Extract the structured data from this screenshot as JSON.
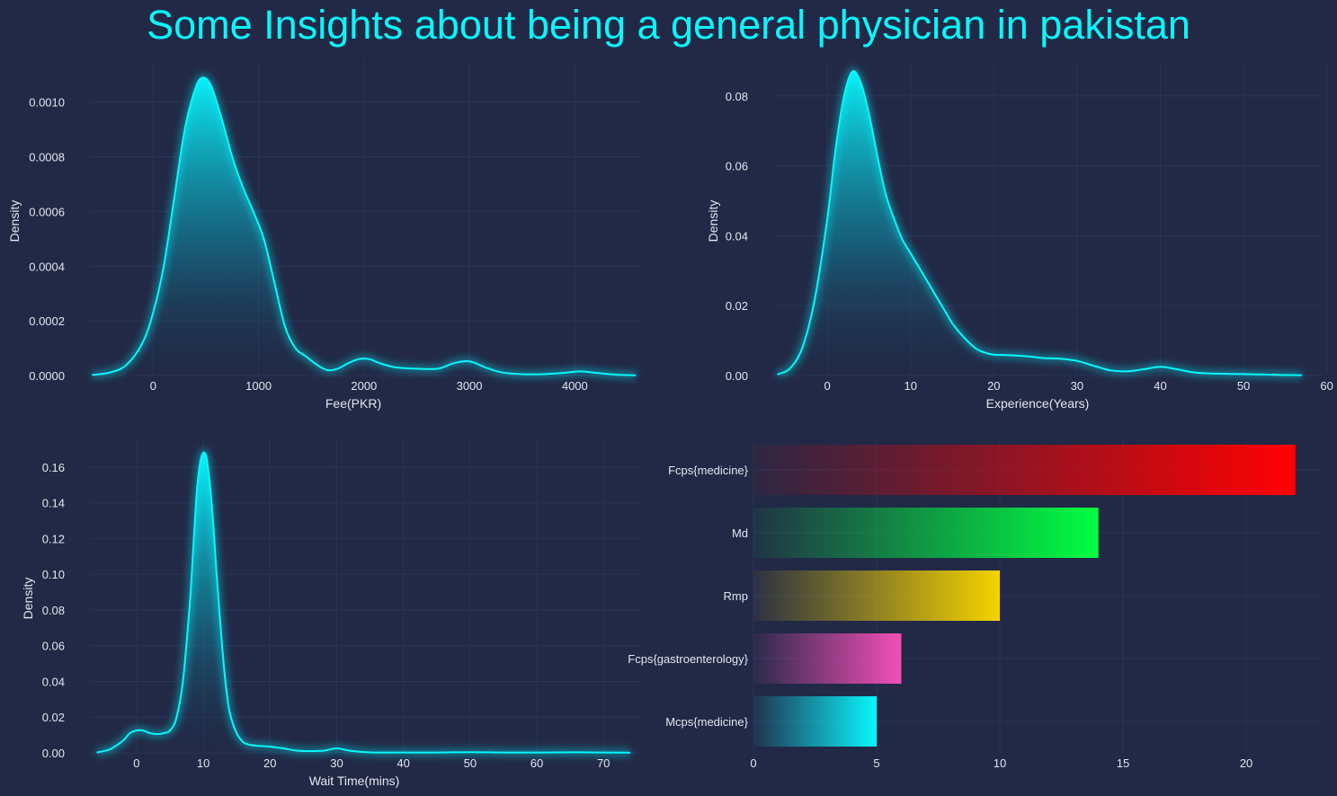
{
  "title": "Some Insights about being a general physician in pakistan",
  "colors": {
    "background": "#212946",
    "grid": "#2A3459",
    "text": "#e4e6ee",
    "accent": "#08F7FE"
  },
  "chart_data": [
    {
      "type": "area",
      "xlabel": "Fee(PKR)",
      "ylabel": "Density",
      "xlim": [
        -600,
        4620
      ],
      "ylim": [
        0,
        0.00115
      ],
      "xticks": [
        0,
        1000,
        2000,
        3000,
        4000
      ],
      "xtick_labels": [
        "0",
        "1000",
        "2000",
        "3000",
        "4000"
      ],
      "yticks": [
        0,
        0.0002,
        0.0004,
        0.0006,
        0.0008,
        0.001
      ],
      "ytick_labels": [
        "0.0000",
        "0.0002",
        "0.0004",
        "0.0006",
        "0.0008",
        "0.0010"
      ],
      "grid": true,
      "x": [
        -580,
        -400,
        -250,
        -100,
        0,
        100,
        200,
        300,
        400,
        470,
        550,
        650,
        750,
        850,
        950,
        1050,
        1150,
        1250,
        1350,
        1450,
        1550,
        1650,
        1750,
        1850,
        1950,
        2050,
        2150,
        2300,
        2500,
        2700,
        2850,
        3000,
        3150,
        3300,
        3500,
        3700,
        3900,
        4050,
        4200,
        4400,
        4580
      ],
      "y": [
        2e-06,
        1.2e-05,
        4e-05,
        0.00012,
        0.00023,
        0.0004,
        0.00065,
        0.0009,
        0.00105,
        0.00109,
        0.00106,
        0.00094,
        0.0008,
        0.00069,
        0.0006,
        0.0005,
        0.00034,
        0.00018,
        0.0001,
        7e-05,
        4e-05,
        2e-05,
        2.5e-05,
        4.5e-05,
        6e-05,
        6e-05,
        4.5e-05,
        3e-05,
        2.5e-05,
        2.5e-05,
        4.5e-05,
        5.2e-05,
        3e-05,
        1.2e-05,
        5e-06,
        5e-06,
        1e-05,
        1.5e-05,
        1e-05,
        3e-06,
        1e-06
      ]
    },
    {
      "type": "area",
      "xlabel": "Experience(Years)",
      "ylabel": "Density",
      "xlim": [
        -6.5,
        59.5
      ],
      "ylim": [
        0,
        0.09
      ],
      "xticks": [
        0,
        10,
        20,
        30,
        40,
        50,
        60
      ],
      "xtick_labels": [
        "0",
        "10",
        "20",
        "30",
        "40",
        "50",
        "60"
      ],
      "yticks": [
        0,
        0.02,
        0.04,
        0.06,
        0.08
      ],
      "ytick_labels": [
        "0.00",
        "0.02",
        "0.04",
        "0.06",
        "0.08"
      ],
      "grid": true,
      "x": [
        -6,
        -4.5,
        -3,
        -1.5,
        0,
        1,
        2,
        3,
        4,
        5,
        6,
        7,
        8,
        9,
        10,
        11,
        12,
        13,
        14,
        15,
        16,
        17,
        18,
        19,
        20,
        22,
        24,
        26,
        28,
        30,
        32,
        34,
        36,
        38,
        40,
        42,
        44,
        46,
        48,
        50,
        52,
        54,
        57
      ],
      "y": [
        0.0003,
        0.002,
        0.008,
        0.022,
        0.045,
        0.065,
        0.08,
        0.087,
        0.084,
        0.075,
        0.063,
        0.052,
        0.045,
        0.039,
        0.035,
        0.031,
        0.027,
        0.023,
        0.019,
        0.015,
        0.012,
        0.0095,
        0.0075,
        0.0065,
        0.006,
        0.0058,
        0.0055,
        0.005,
        0.0048,
        0.0042,
        0.0028,
        0.0015,
        0.0012,
        0.0018,
        0.0025,
        0.0018,
        0.0009,
        0.0006,
        0.0005,
        0.0004,
        0.0003,
        0.0002,
        0.0001
      ]
    },
    {
      "type": "area",
      "xlabel": "Wait Time(mins)",
      "ylabel": "Density",
      "xlim": [
        -7,
        75.5
      ],
      "ylim": [
        0,
        0.176
      ],
      "xticks": [
        0,
        10,
        20,
        30,
        40,
        50,
        60,
        70
      ],
      "xtick_labels": [
        "0",
        "10",
        "20",
        "30",
        "40",
        "50",
        "60",
        "70"
      ],
      "yticks": [
        0,
        0.02,
        0.04,
        0.06,
        0.08,
        0.1,
        0.12,
        0.14,
        0.16
      ],
      "ytick_labels": [
        "0.00",
        "0.02",
        "0.04",
        "0.06",
        "0.08",
        "0.10",
        "0.12",
        "0.14",
        "0.16"
      ],
      "grid": true,
      "x": [
        -6,
        -4,
        -2,
        -1,
        0,
        1,
        2,
        3,
        4,
        5,
        6,
        7,
        8,
        8.5,
        9,
        9.5,
        10,
        10.5,
        11,
        11.5,
        12,
        12.5,
        13,
        13.5,
        14,
        15,
        16,
        17,
        18,
        20,
        22,
        24,
        26,
        28,
        30,
        32,
        34,
        36,
        40,
        45,
        50,
        55,
        60,
        65,
        70,
        74
      ],
      "y": [
        0.0002,
        0.002,
        0.007,
        0.011,
        0.0125,
        0.0125,
        0.011,
        0.0105,
        0.011,
        0.0125,
        0.02,
        0.042,
        0.085,
        0.115,
        0.145,
        0.162,
        0.168,
        0.165,
        0.15,
        0.128,
        0.1,
        0.075,
        0.052,
        0.034,
        0.022,
        0.011,
        0.006,
        0.0045,
        0.004,
        0.0035,
        0.0025,
        0.0012,
        0.001,
        0.0012,
        0.0025,
        0.0012,
        0.0005,
        0.0002,
        0.0002,
        0.0002,
        0.0004,
        0.0002,
        0.0002,
        0.0003,
        0.0002,
        0.0001
      ]
    },
    {
      "type": "bar",
      "orientation": "horizontal",
      "categories": [
        "Fcps{medicine}",
        "Md",
        "Rmp",
        "Fcps{gastroenterology}",
        "Mcps{medicine}"
      ],
      "values": [
        22,
        14,
        10,
        6,
        5
      ],
      "colors": [
        "#FF0000",
        "#00FF41",
        "#F5D300",
        "#F34FB7",
        "#08F7FE"
      ],
      "xlim": [
        0,
        23.1
      ],
      "xticks": [
        0,
        5,
        10,
        15,
        20
      ],
      "xtick_labels": [
        "0",
        "5",
        "10",
        "15",
        "20"
      ],
      "grid": true
    }
  ]
}
